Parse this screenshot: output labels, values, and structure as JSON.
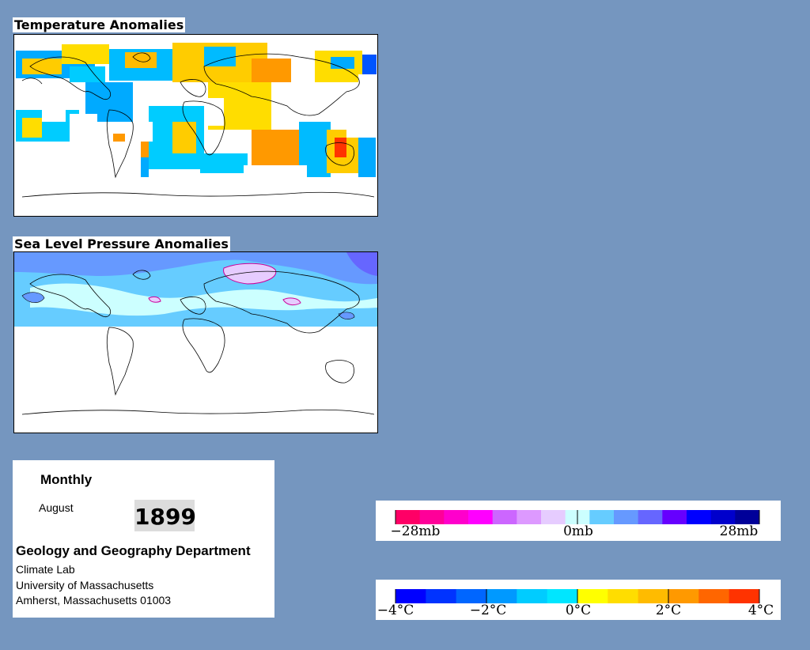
{
  "temperature_map": {
    "title": "Temperature Anomalies"
  },
  "pressure_map": {
    "title": "Sea Level Pressure Anomalies"
  },
  "info": {
    "frequency": "Monthly",
    "month": "August",
    "year": "1899",
    "department": "Geology and Geography Department",
    "lines": [
      "Climate Lab",
      "University of Massachusetts",
      "Amherst, Massachusetts 01003"
    ]
  },
  "pressure_legend": {
    "labels": [
      "−28mb",
      "0mb",
      "28mb"
    ],
    "colors": [
      "#ff0066",
      "#ff0099",
      "#ff00cc",
      "#ff00ff",
      "#cc66ff",
      "#dd99ff",
      "#e6ccff",
      "#ccffff",
      "#66ccff",
      "#6699ff",
      "#6666ff",
      "#6600ff",
      "#0000ff",
      "#0000cc",
      "#000099"
    ]
  },
  "temperature_legend": {
    "labels": [
      "−4°C",
      "−2°C",
      "0°C",
      "2°C",
      "4°C"
    ],
    "colors": [
      "#0000ff",
      "#0033ff",
      "#0066ff",
      "#0099ff",
      "#00ccff",
      "#00e6ff",
      "#ffff00",
      "#ffdd00",
      "#ffbb00",
      "#ff9900",
      "#ff6600",
      "#ff3300"
    ]
  }
}
